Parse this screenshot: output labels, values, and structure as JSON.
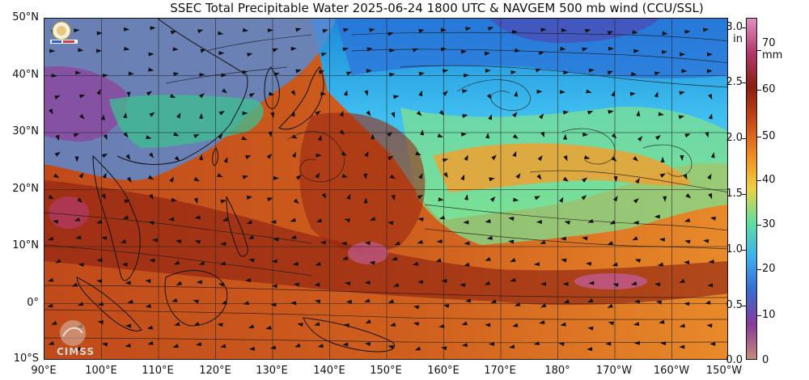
{
  "title": "SSEC Total Precipitable Water  2025-06-24 1800 UTC & NAVGEM 500 mb wind (CCU/SSL)",
  "lat_labels": [
    "50°N",
    "40°N",
    "30°N",
    "20°N",
    "10°N",
    "0°",
    "10°S"
  ],
  "lon_labels": [
    "90°E",
    "100°E",
    "110°E",
    "120°E",
    "130°E",
    "140°E",
    "150°E",
    "160°E",
    "170°E",
    "180°",
    "170°W",
    "160°W",
    "150°W"
  ],
  "colorbar": {
    "inch_unit": "in",
    "mm_unit": "mm",
    "inch_labels": [
      "3.0",
      "2.5",
      "2.0",
      "1.5",
      "1.0",
      "0.5",
      "0.0"
    ],
    "mm_labels": [
      "70",
      "60",
      "50",
      "40",
      "30",
      "20",
      "10",
      "0"
    ],
    "colors": [
      "#c78a7a",
      "#8a3a9a",
      "#3a6ad0",
      "#3cb0f0",
      "#5ee0a0",
      "#f0d040",
      "#f08a20",
      "#c84818",
      "#8a1e10",
      "#b23a6a",
      "#e090c0"
    ]
  },
  "logos": {
    "cimss": "CIMSS"
  }
}
